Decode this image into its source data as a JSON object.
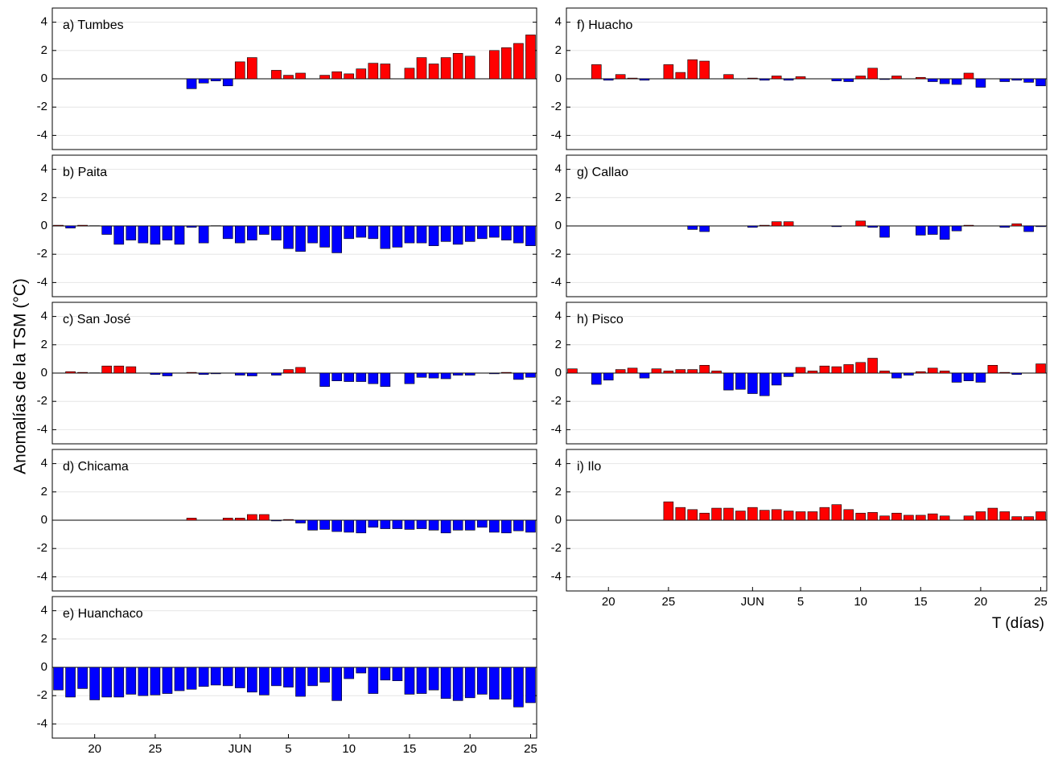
{
  "y_label": "Anomalías de la TSM (°C)",
  "chart_data": [
    {
      "type": "bar",
      "title": "a) Tumbes",
      "pos_color": "#ff0000",
      "neg_color": "#0000ff",
      "grid": true,
      "ylim": [
        -5,
        5
      ],
      "yticks": [
        -4,
        -2,
        0,
        2,
        4
      ],
      "values": [
        null,
        null,
        null,
        null,
        null,
        null,
        null,
        null,
        null,
        null,
        null,
        -0.7,
        -0.3,
        -0.15,
        -0.5,
        1.2,
        1.5,
        null,
        0.6,
        0.25,
        0.4,
        null,
        0.25,
        0.5,
        0.35,
        0.7,
        1.1,
        1.05,
        null,
        0.75,
        1.5,
        1.05,
        1.5,
        1.8,
        1.6,
        null,
        2.0,
        2.2,
        2.5,
        3.1
      ]
    },
    {
      "type": "bar",
      "title": "b) Paita",
      "pos_color": "#ff0000",
      "neg_color": "#0000ff",
      "grid": true,
      "ylim": [
        -5,
        5
      ],
      "yticks": [
        -4,
        -2,
        0,
        2,
        4
      ],
      "values": [
        0.05,
        -0.15,
        0.05,
        0.02,
        -0.6,
        -1.3,
        -1.0,
        -1.2,
        -1.3,
        -1.0,
        -1.3,
        -0.1,
        -1.2,
        0.02,
        -0.9,
        -1.2,
        -1.0,
        -0.6,
        -1.0,
        -1.6,
        -1.8,
        -1.2,
        -1.5,
        -1.9,
        -0.9,
        -0.8,
        -0.9,
        -1.6,
        -1.5,
        -1.2,
        -1.2,
        -1.4,
        -1.1,
        -1.3,
        -1.1,
        -0.9,
        -0.8,
        -1.0,
        -1.2,
        -1.4
      ]
    },
    {
      "type": "bar",
      "title": "c) San José",
      "pos_color": "#ff0000",
      "neg_color": "#0000ff",
      "grid": true,
      "ylim": [
        -5,
        5
      ],
      "yticks": [
        -4,
        -2,
        0,
        2,
        4
      ],
      "values": [
        null,
        0.1,
        0.05,
        0.02,
        0.5,
        0.5,
        0.45,
        null,
        -0.1,
        -0.2,
        null,
        0.05,
        -0.1,
        -0.05,
        null,
        -0.15,
        -0.2,
        null,
        -0.15,
        0.25,
        0.4,
        null,
        -0.95,
        -0.55,
        -0.6,
        -0.6,
        -0.75,
        -0.95,
        null,
        -0.75,
        -0.3,
        -0.35,
        -0.4,
        -0.15,
        -0.15,
        null,
        -0.05,
        0.05,
        -0.45,
        -0.3
      ]
    },
    {
      "type": "bar",
      "title": "d) Chicama",
      "pos_color": "#ff0000",
      "neg_color": "#0000ff",
      "grid": true,
      "ylim": [
        -5,
        5
      ],
      "yticks": [
        -4,
        -2,
        0,
        2,
        4
      ],
      "values": [
        null,
        null,
        null,
        null,
        null,
        null,
        null,
        null,
        null,
        null,
        null,
        0.15,
        null,
        null,
        0.15,
        0.15,
        0.4,
        0.4,
        -0.05,
        0.05,
        -0.2,
        -0.7,
        -0.65,
        -0.8,
        -0.85,
        -0.9,
        -0.5,
        -0.6,
        -0.6,
        -0.65,
        -0.6,
        -0.7,
        -0.9,
        -0.7,
        -0.7,
        -0.5,
        -0.85,
        -0.9,
        -0.75,
        -0.85
      ]
    },
    {
      "type": "bar",
      "title": "e) Huanchaco",
      "pos_color": "#ff0000",
      "neg_color": "#0000ff",
      "grid": true,
      "ylim": [
        -5,
        5
      ],
      "yticks": [
        -4,
        -2,
        0,
        2,
        4
      ],
      "categories": [
        null,
        null,
        null,
        "20",
        null,
        null,
        null,
        null,
        "25",
        null,
        null,
        null,
        null,
        null,
        null,
        "JUN",
        null,
        null,
        null,
        "5",
        null,
        null,
        null,
        null,
        "10",
        null,
        null,
        null,
        null,
        "15",
        null,
        null,
        null,
        null,
        "20",
        null,
        null,
        null,
        null,
        "25"
      ],
      "values": [
        -1.6,
        -2.1,
        -1.5,
        -2.3,
        -2.1,
        -2.1,
        -1.9,
        -2.0,
        -1.95,
        -1.85,
        -1.65,
        -1.55,
        -1.35,
        -1.25,
        -1.3,
        -1.45,
        -1.75,
        -1.95,
        -1.3,
        -1.4,
        -2.05,
        -1.3,
        -1.05,
        -2.35,
        -0.8,
        -0.4,
        -1.85,
        -0.9,
        -0.95,
        -1.9,
        -1.85,
        -1.6,
        -2.2,
        -2.35,
        -2.15,
        -1.9,
        -2.25,
        -2.25,
        -2.8,
        -2.5
      ]
    },
    {
      "type": "bar",
      "title": "f) Huacho",
      "pos_color": "#ff0000",
      "neg_color": "#0000ff",
      "grid": true,
      "ylim": [
        -5,
        5
      ],
      "yticks": [
        -4,
        -2,
        0,
        2,
        4
      ],
      "values": [
        null,
        null,
        1.0,
        -0.1,
        0.3,
        0.05,
        -0.1,
        null,
        1.0,
        0.45,
        1.35,
        1.25,
        null,
        0.3,
        null,
        0.05,
        -0.1,
        0.2,
        -0.1,
        0.15,
        null,
        null,
        -0.15,
        -0.2,
        0.2,
        0.75,
        -0.05,
        0.2,
        null,
        0.1,
        -0.2,
        -0.35,
        -0.4,
        0.4,
        -0.6,
        null,
        -0.2,
        -0.1,
        -0.25,
        -0.5
      ]
    },
    {
      "type": "bar",
      "title": "g) Callao",
      "pos_color": "#ff0000",
      "neg_color": "#0000ff",
      "grid": true,
      "ylim": [
        -5,
        5
      ],
      "yticks": [
        -4,
        -2,
        0,
        2,
        4
      ],
      "values": [
        null,
        null,
        null,
        null,
        null,
        null,
        null,
        null,
        null,
        null,
        -0.25,
        -0.4,
        null,
        null,
        null,
        -0.1,
        0.05,
        0.3,
        0.3,
        null,
        null,
        null,
        -0.05,
        null,
        0.35,
        -0.1,
        -0.8,
        null,
        null,
        -0.65,
        -0.6,
        -0.95,
        -0.35,
        0.05,
        null,
        null,
        -0.1,
        0.15,
        -0.4,
        -0.05
      ]
    },
    {
      "type": "bar",
      "title": "h) Pisco",
      "pos_color": "#ff0000",
      "neg_color": "#0000ff",
      "grid": true,
      "ylim": [
        -5,
        5
      ],
      "yticks": [
        -4,
        -2,
        0,
        2,
        4
      ],
      "values": [
        0.3,
        null,
        -0.8,
        -0.5,
        0.25,
        0.35,
        -0.35,
        0.3,
        0.15,
        0.25,
        0.25,
        0.55,
        0.15,
        -1.2,
        -1.15,
        -1.45,
        -1.6,
        -0.85,
        -0.25,
        0.4,
        0.15,
        0.5,
        0.45,
        0.6,
        0.75,
        1.05,
        0.15,
        -0.35,
        -0.15,
        0.1,
        0.35,
        0.15,
        -0.65,
        -0.55,
        -0.65,
        0.55,
        0.05,
        -0.1,
        null,
        0.65
      ]
    },
    {
      "type": "bar",
      "title": "i) Ilo",
      "pos_color": "#ff0000",
      "neg_color": "#0000ff",
      "grid": true,
      "ylim": [
        -5,
        5
      ],
      "yticks": [
        -4,
        -2,
        0,
        2,
        4
      ],
      "x_label": "T (días)",
      "categories": [
        null,
        null,
        null,
        "20",
        null,
        null,
        null,
        null,
        "25",
        null,
        null,
        null,
        null,
        null,
        null,
        "JUN",
        null,
        null,
        null,
        "5",
        null,
        null,
        null,
        null,
        "10",
        null,
        null,
        null,
        null,
        "15",
        null,
        null,
        null,
        null,
        "20",
        null,
        null,
        null,
        null,
        "25"
      ],
      "values": [
        null,
        null,
        null,
        null,
        null,
        null,
        null,
        null,
        1.3,
        0.9,
        0.75,
        0.5,
        0.85,
        0.85,
        0.65,
        0.9,
        0.7,
        0.75,
        0.65,
        0.6,
        0.6,
        0.9,
        1.1,
        0.75,
        0.5,
        0.55,
        0.3,
        0.5,
        0.35,
        0.35,
        0.45,
        0.3,
        null,
        0.3,
        0.6,
        0.85,
        0.6,
        0.25,
        0.25,
        0.6
      ]
    }
  ]
}
